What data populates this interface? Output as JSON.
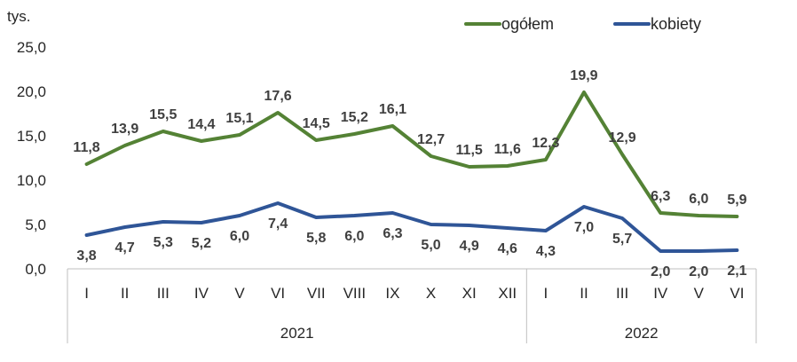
{
  "chart_data": {
    "type": "line",
    "y_unit": "tys.",
    "ylim": [
      0,
      25
    ],
    "y_ticks": [
      "0,0",
      "5,0",
      "10,0",
      "15,0",
      "20,0",
      "25,0"
    ],
    "categories": [
      "I",
      "II",
      "III",
      "IV",
      "V",
      "VI",
      "VII",
      "VIII",
      "IX",
      "X",
      "XI",
      "XII",
      "I",
      "II",
      "III",
      "IV",
      "V",
      "VI"
    ],
    "groups": [
      {
        "label": "2021",
        "count": 12
      },
      {
        "label": "2022",
        "count": 6
      }
    ],
    "legend_position": "top-right",
    "grid": false,
    "series": [
      {
        "name": "ogółem",
        "color": "#548235",
        "values": [
          11.8,
          13.9,
          15.5,
          14.4,
          15.1,
          17.6,
          14.5,
          15.2,
          16.1,
          12.7,
          11.5,
          11.6,
          12.3,
          19.9,
          12.9,
          6.3,
          6.0,
          5.9
        ],
        "labels": [
          "11,8",
          "13,9",
          "15,5",
          "14,4",
          "15,1",
          "17,6",
          "14,5",
          "15,2",
          "16,1",
          "12,7",
          "11,5",
          "11,6",
          "12,3",
          "19,9",
          "12,9",
          "6,3",
          "6,0",
          "5,9"
        ],
        "label_side": "above"
      },
      {
        "name": "kobiety",
        "color": "#2F5597",
        "values": [
          3.8,
          4.7,
          5.3,
          5.2,
          6.0,
          7.4,
          5.8,
          6.0,
          6.3,
          5.0,
          4.9,
          4.6,
          4.3,
          7.0,
          5.7,
          2.0,
          2.0,
          2.1
        ],
        "labels": [
          "3,8",
          "4,7",
          "5,3",
          "5,2",
          "6,0",
          "7,4",
          "5,8",
          "6,0",
          "6,3",
          "5,0",
          "4,9",
          "4,6",
          "4,3",
          "7,0",
          "5,7",
          "2,0",
          "2,0",
          "2,1"
        ],
        "label_side": "below"
      }
    ]
  }
}
